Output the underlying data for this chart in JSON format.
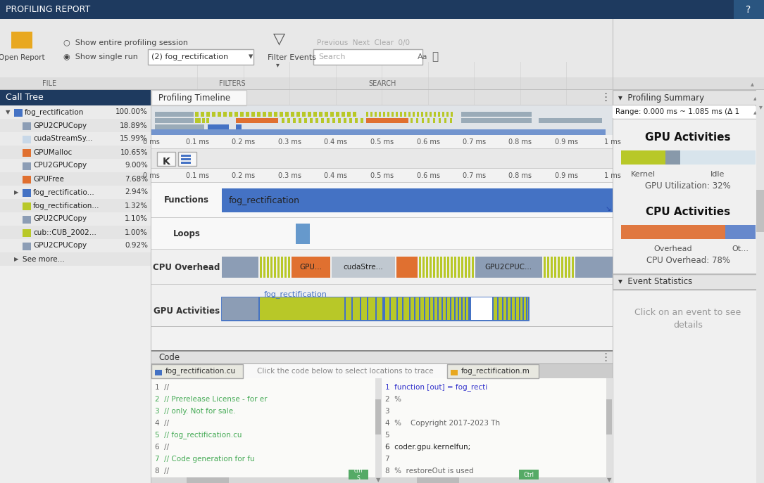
{
  "title": "PROFILING REPORT",
  "header_bg": "#1e3a5f",
  "header_text_color": "#ffffff",
  "call_tree_header": "Call Tree",
  "call_tree_items": [
    {
      "label": "fog_rectification",
      "pct": "100.00%",
      "color": "#4472c4",
      "indent": 0,
      "has_arrow": true,
      "arrow_down": true
    },
    {
      "label": "GPU2CPUCopy",
      "pct": "18.89%",
      "color": "#8c9db5",
      "indent": 1,
      "has_arrow": false,
      "arrow_down": false
    },
    {
      "label": "cudaStreamSy...",
      "pct": "15.99%",
      "color": "#c8d8e8",
      "indent": 1,
      "has_arrow": false,
      "arrow_down": false
    },
    {
      "label": "GPUMalloc",
      "pct": "10.65%",
      "color": "#e07030",
      "indent": 1,
      "has_arrow": false,
      "arrow_down": false
    },
    {
      "label": "CPU2GPUCopy",
      "pct": "9.00%",
      "color": "#8c9db5",
      "indent": 1,
      "has_arrow": false,
      "arrow_down": false
    },
    {
      "label": "GPUFree",
      "pct": "7.68%",
      "color": "#e07030",
      "indent": 1,
      "has_arrow": false,
      "arrow_down": false
    },
    {
      "label": "fog_rectificatio...",
      "pct": "2.94%",
      "color": "#4472c4",
      "indent": 1,
      "has_arrow": true,
      "arrow_down": false
    },
    {
      "label": "fog_rectification...",
      "pct": "1.32%",
      "color": "#b8c828",
      "indent": 1,
      "has_arrow": false,
      "arrow_down": false
    },
    {
      "label": "GPU2CPUCopy",
      "pct": "1.10%",
      "color": "#8c9db5",
      "indent": 1,
      "has_arrow": false,
      "arrow_down": false
    },
    {
      "label": "cub::CUB_2002...",
      "pct": "1.00%",
      "color": "#b8c828",
      "indent": 1,
      "has_arrow": false,
      "arrow_down": false
    },
    {
      "label": "GPU2CPUCopy",
      "pct": "0.92%",
      "color": "#8c9db5",
      "indent": 1,
      "has_arrow": false,
      "arrow_down": false
    },
    {
      "label": "See more...",
      "pct": "",
      "color": null,
      "indent": 1,
      "has_arrow": true,
      "arrow_down": false
    }
  ],
  "timeline_title": "Profiling Timeline",
  "timeline_labels": [
    "0 ms",
    "0.1 ms",
    "0.2 ms",
    "0.3 ms",
    "0.4 ms",
    "0.5 ms",
    "0.6 ms",
    "0.7 ms",
    "0.8 ms",
    "0.9 ms",
    "1 ms"
  ],
  "profiling_summary_title": "Profiling Summary",
  "range_text": "Range: 0.000 ms ~ 1.085 ms (Δ 1",
  "gpu_activities_title": "GPU Activities",
  "gpu_kernel_color": "#b8c828",
  "gpu_idle_color": "#8899aa",
  "gpu_idle_light_color": "#d8e4ec",
  "gpu_utilization": "GPU Utilization: 32%",
  "cpu_activities_title": "CPU Activities",
  "cpu_overhead_color": "#e07840",
  "cpu_other_color": "#6688cc",
  "cpu_overhead_pct": 0.78,
  "cpu_overhead_text": "CPU Overhead: 78%",
  "event_statistics": "Event Statistics",
  "click_text1": "Click on an event to see",
  "click_text2": "details",
  "code_section_title": "Code",
  "code_tab1": "fog_rectification.cu",
  "code_tab2": "fog_rectification.m",
  "code_prompt": "Click the code below to select locations to trace",
  "code_lines_left": [
    "1  //",
    "2  // Prerelease License - for er",
    "3  // only. Not for sale.",
    "4  //",
    "5  // fog_rectification.cu",
    "6  //",
    "7  // Code generation for fu",
    "8  //"
  ],
  "code_lines_right": [
    "1  function [out] = fog_recti",
    "2  %",
    "3  ",
    "4  %    Copyright 2017-2023 Th",
    "5  ",
    "6  coder.gpu.kernelfun;",
    "7  ",
    "8  %  restoreOut is used"
  ],
  "function_label": "fog_rectification"
}
